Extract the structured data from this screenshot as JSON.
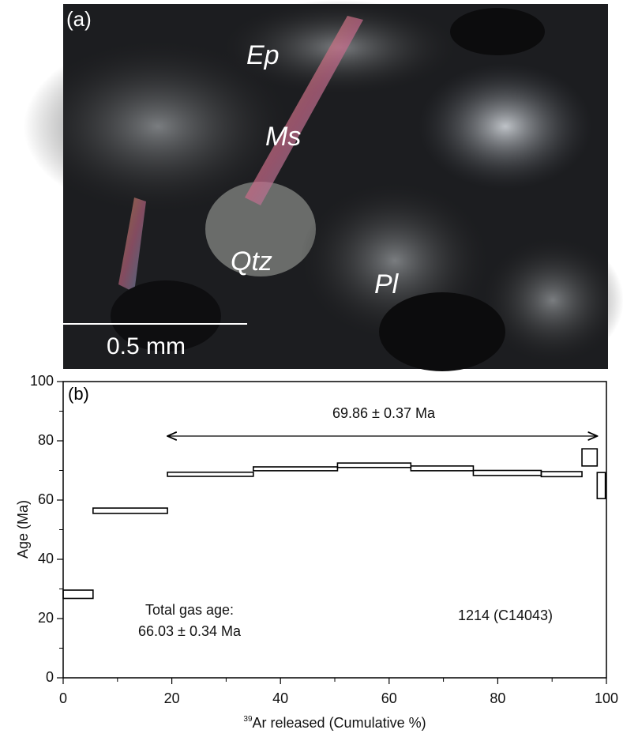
{
  "photo": {
    "panel_label": "(a)",
    "minerals": [
      "Ep",
      "Ms",
      "Qtz",
      "Pl"
    ],
    "scale_label": "0.5 mm"
  },
  "chart_data": {
    "type": "step",
    "panel_label": "(b)",
    "ylabel": "Age (Ma)",
    "xlabel_sup": "39",
    "xlabel": "Ar released (Cumulative %)",
    "bins": [
      0,
      5.5,
      19.2,
      35,
      50.5,
      64,
      75.5,
      88,
      95.5,
      98.3,
      99.8
    ],
    "age_upper": [
      29.6,
      57.3,
      69.4,
      71.2,
      72.5,
      71.5,
      70,
      69.6,
      77.3,
      69.3
    ],
    "age_lower": [
      26.8,
      55.5,
      68,
      69.9,
      71,
      69.9,
      68.3,
      67.9,
      71.5,
      60.5
    ],
    "plateau_label": "69.86 ± 0.37 Ma",
    "plateau_x": [
      19.2,
      98.3
    ],
    "plateau_y": 81.6,
    "total_gas_label": [
      "Total gas age:",
      "66.03 ± 0.34 Ma"
    ],
    "sample_label": "1214 (C14043)",
    "xlim": [
      0,
      100
    ],
    "ylim": [
      0,
      100
    ],
    "xticks": [
      0,
      20,
      40,
      60,
      80,
      100
    ],
    "yticks": [
      0,
      20,
      40,
      60,
      80,
      100
    ],
    "xminorticks": [
      10,
      30,
      50,
      70,
      90
    ],
    "yminorticks": [
      10,
      30,
      50,
      70,
      90
    ],
    "color": "#000000"
  }
}
